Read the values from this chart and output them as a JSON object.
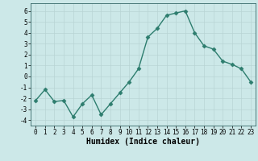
{
  "x": [
    0,
    1,
    2,
    3,
    4,
    5,
    6,
    7,
    8,
    9,
    10,
    11,
    12,
    13,
    14,
    15,
    16,
    17,
    18,
    19,
    20,
    21,
    22,
    23
  ],
  "y": [
    -2.2,
    -1.2,
    -2.3,
    -2.2,
    -3.7,
    -2.5,
    -1.7,
    -3.5,
    -2.5,
    -1.5,
    -0.5,
    0.7,
    3.6,
    4.4,
    5.6,
    5.8,
    6.0,
    4.0,
    2.8,
    2.5,
    1.4,
    1.1,
    0.7,
    -0.5
  ],
  "line_color": "#2d7d6e",
  "marker": "D",
  "markersize": 2.5,
  "linewidth": 1.0,
  "xlabel": "Humidex (Indice chaleur)",
  "xlabel_fontsize": 7,
  "xlim": [
    -0.5,
    23.5
  ],
  "ylim": [
    -4.5,
    6.7
  ],
  "yticks": [
    -4,
    -3,
    -2,
    -1,
    0,
    1,
    2,
    3,
    4,
    5,
    6
  ],
  "xticks": [
    0,
    1,
    2,
    3,
    4,
    5,
    6,
    7,
    8,
    9,
    10,
    11,
    12,
    13,
    14,
    15,
    16,
    17,
    18,
    19,
    20,
    21,
    22,
    23
  ],
  "background_color": "#cce8e8",
  "grid_color": "#b8d4d4",
  "tick_fontsize": 5.5,
  "figure_width": 3.2,
  "figure_height": 2.0,
  "dpi": 100
}
